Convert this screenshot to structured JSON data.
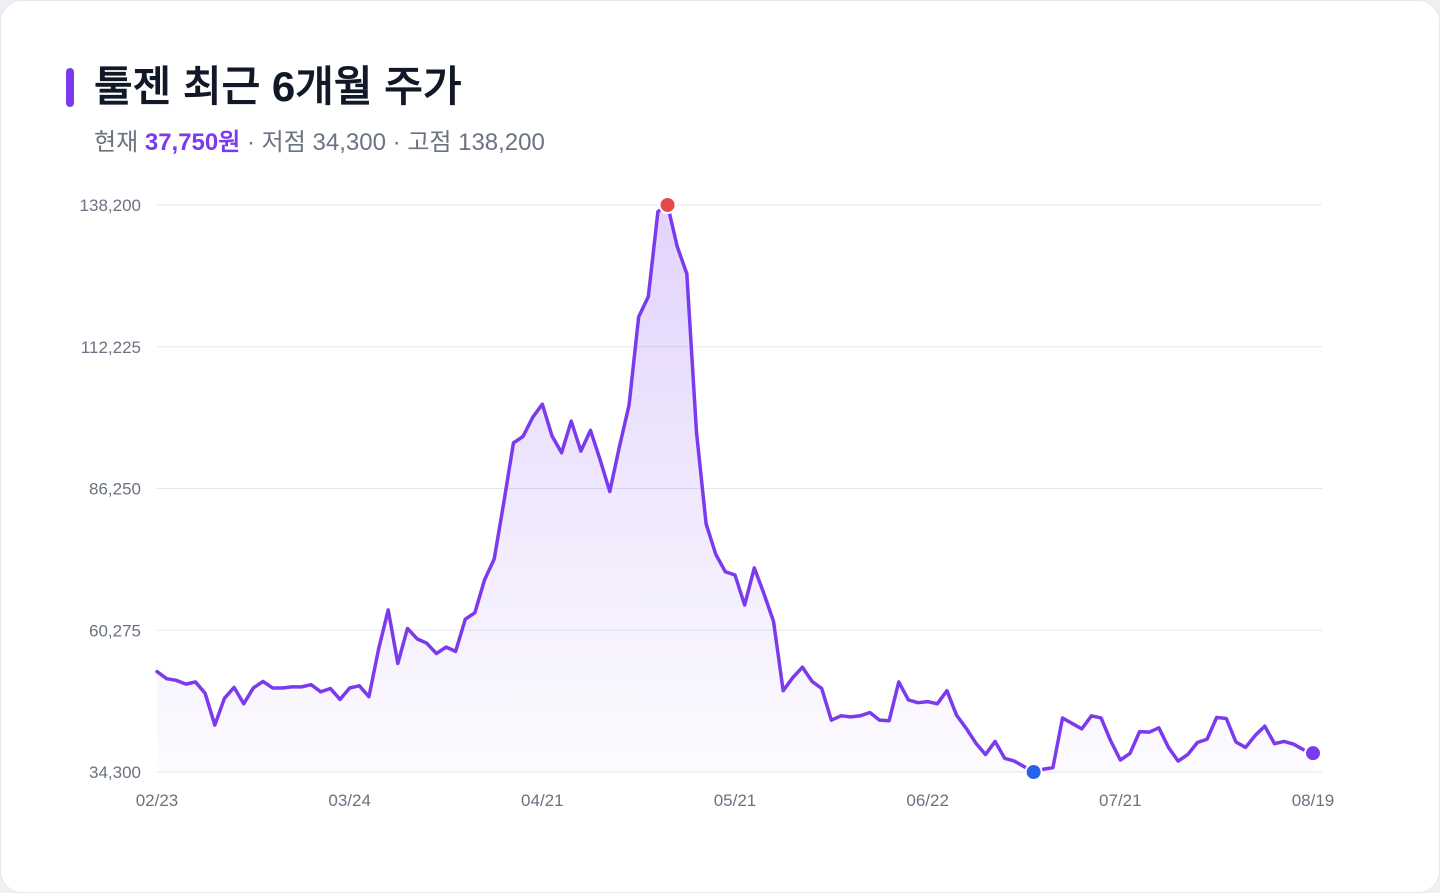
{
  "header": {
    "title": "툴젠 최근 6개월 주가",
    "current_label": "현재",
    "current_value": "37,750원",
    "low_label": "· 저점",
    "low_value": "34,300",
    "high_label": "· 고점",
    "high_value": "138,200"
  },
  "colors": {
    "accent": "#7c3aed",
    "peak": "#e5484d",
    "trough": "#2563eb",
    "grid": "#e5e7eb",
    "text_muted": "#6b7280"
  },
  "chart_data": {
    "type": "area",
    "ylim": [
      34300,
      138200
    ],
    "yticks": [
      "34,300",
      "60,275",
      "86,250",
      "112,225",
      "138,200"
    ],
    "xticks": [
      "02/23",
      "03/24",
      "04/21",
      "05/21",
      "06/22",
      "07/21",
      "08/19"
    ],
    "grid": true,
    "values": [
      52700,
      51400,
      51100,
      50400,
      50800,
      48700,
      42900,
      47800,
      49800,
      46800,
      49700,
      50900,
      49700,
      49700,
      49900,
      49900,
      50300,
      49000,
      49600,
      47600,
      49700,
      50100,
      48100,
      56800,
      64000,
      54200,
      60600,
      58700,
      57900,
      56000,
      57200,
      56400,
      62300,
      63500,
      69500,
      73300,
      83700,
      94600,
      95800,
      99300,
      101700,
      95900,
      92800,
      98600,
      93100,
      96900,
      91500,
      85700,
      93900,
      101500,
      117700,
      121400,
      137000,
      138200,
      130600,
      125600,
      96600,
      79800,
      74200,
      71000,
      70400,
      64900,
      71700,
      67000,
      61900,
      49200,
      51600,
      53500,
      50900,
      49600,
      43800,
      44600,
      44400,
      44600,
      45200,
      43800,
      43700,
      50800,
      47500,
      47000,
      47200,
      46800,
      49200,
      44700,
      42300,
      39600,
      37500,
      39900,
      36800,
      36300,
      35300,
      34300,
      34800,
      35100,
      44200,
      43200,
      42200,
      44600,
      44200,
      40000,
      36500,
      37700,
      41700,
      41600,
      42400,
      38800,
      36300,
      37500,
      39700,
      40300,
      44300,
      44100,
      39800,
      38800,
      41000,
      42700,
      39500,
      39900,
      39400,
      38400,
      37750
    ],
    "peak_index": 53,
    "trough_index": 91,
    "last_index": 120
  }
}
